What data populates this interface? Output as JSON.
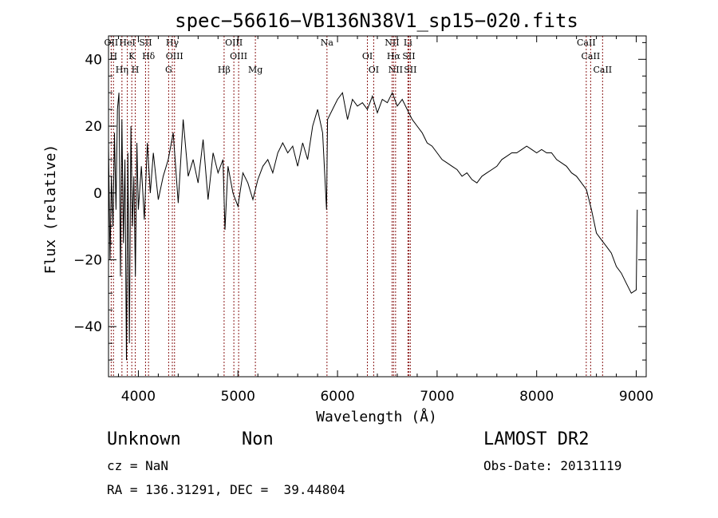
{
  "chart_data": {
    "type": "line",
    "title": "spec−56616−VB136N38V1_sp15−020.fits",
    "xlabel": "Wavelength (Å)",
    "ylabel": "Flux (relative)",
    "xlim": [
      3700,
      9100
    ],
    "ylim": [
      -55,
      47
    ],
    "xticks": [
      4000,
      5000,
      6000,
      7000,
      8000,
      9000
    ],
    "yticks": [
      -40,
      -20,
      0,
      20,
      40
    ],
    "grid": false,
    "series": [
      {
        "x": [
          3700,
          3715,
          3730,
          3745,
          3760,
          3775,
          3790,
          3805,
          3820,
          3835,
          3850,
          3865,
          3880,
          3895,
          3910,
          3925,
          3940,
          3955,
          3970,
          3985,
          4000,
          4030,
          4060,
          4090,
          4120,
          4150,
          4200,
          4250,
          4300,
          4350,
          4400,
          4450,
          4500,
          4550,
          4600,
          4650,
          4700,
          4750,
          4800,
          4850,
          4870,
          4900,
          4950,
          5000,
          5050,
          5100,
          5150,
          5200,
          5250,
          5300,
          5350,
          5400,
          5450,
          5500,
          5550,
          5600,
          5650,
          5700,
          5750,
          5800,
          5850,
          5890,
          5900,
          5950,
          6000,
          6050,
          6100,
          6150,
          6200,
          6250,
          6300,
          6350,
          6400,
          6450,
          6500,
          6550,
          6600,
          6650,
          6700,
          6750,
          6800,
          6850,
          6900,
          6950,
          7000,
          7050,
          7100,
          7150,
          7200,
          7250,
          7300,
          7350,
          7400,
          7450,
          7500,
          7550,
          7600,
          7650,
          7700,
          7750,
          7800,
          7850,
          7900,
          7950,
          8000,
          8050,
          8100,
          8150,
          8200,
          8250,
          8300,
          8350,
          8400,
          8450,
          8500,
          8550,
          8600,
          8650,
          8700,
          8750,
          8800,
          8850,
          8900,
          8950,
          9000,
          9010
        ],
        "y": [
          15,
          -20,
          5,
          -10,
          18,
          -5,
          25,
          30,
          -25,
          22,
          -15,
          10,
          -50,
          12,
          -45,
          20,
          -10,
          5,
          -25,
          15,
          -5,
          8,
          -8,
          15,
          0,
          12,
          -2,
          5,
          10,
          18,
          -3,
          22,
          5,
          10,
          3,
          16,
          -2,
          12,
          6,
          10,
          -11,
          8,
          0,
          -4,
          6,
          3,
          -2,
          4,
          8,
          10,
          6,
          12,
          15,
          12,
          14,
          8,
          15,
          10,
          20,
          25,
          18,
          -5,
          22,
          25,
          28,
          30,
          22,
          28,
          26,
          27,
          25,
          29,
          24,
          28,
          27,
          30,
          26,
          28,
          25,
          22,
          20,
          18,
          15,
          14,
          12,
          10,
          9,
          8,
          7,
          5,
          6,
          4,
          3,
          5,
          6,
          7,
          8,
          10,
          11,
          12,
          12,
          13,
          14,
          13,
          12,
          13,
          12,
          12,
          10,
          9,
          8,
          6,
          5,
          3,
          1,
          -5,
          -12,
          -14,
          -16,
          -18,
          -22,
          -24,
          -27,
          -30,
          -29,
          -5
        ],
        "color": "#000000"
      }
    ],
    "spectral_lines": [
      {
        "label": "OII",
        "x": 3727
      },
      {
        "label": "H",
        "x": 3750
      },
      {
        "label": "Hη",
        "x": 3835
      },
      {
        "label": "HeI",
        "x": 3889
      },
      {
        "label": "K",
        "x": 3934
      },
      {
        "label": "H",
        "x": 3969
      },
      {
        "label": "SII",
        "x": 4072
      },
      {
        "label": "Hδ",
        "x": 4102
      },
      {
        "label": "G",
        "x": 4304
      },
      {
        "label": "Hγ",
        "x": 4341
      },
      {
        "label": "OIII",
        "x": 4363
      },
      {
        "label": "Hβ",
        "x": 4861
      },
      {
        "label": "OIII",
        "x": 4959
      },
      {
        "label": "OIII",
        "x": 5007
      },
      {
        "label": "Mg",
        "x": 5175
      },
      {
        "label": "Na",
        "x": 5894
      },
      {
        "label": "OI",
        "x": 6300
      },
      {
        "label": "OI",
        "x": 6363
      },
      {
        "label": "NII",
        "x": 6548
      },
      {
        "label": "Hα",
        "x": 6563
      },
      {
        "label": "NII",
        "x": 6583
      },
      {
        "label": "Li",
        "x": 6707
      },
      {
        "label": "SII",
        "x": 6716
      },
      {
        "label": "SII",
        "x": 6731
      },
      {
        "label": "CaII",
        "x": 8498
      },
      {
        "label": "CaII",
        "x": 8542
      },
      {
        "label": "CaII",
        "x": 8662
      }
    ]
  },
  "info": {
    "classification": "Unknown",
    "subclass": "Non",
    "survey": "LAMOST DR2",
    "cz": "cz = NaN",
    "obs_date": "Obs-Date: 20131119",
    "radec": "RA = 136.31291, DEC =  39.44804"
  }
}
